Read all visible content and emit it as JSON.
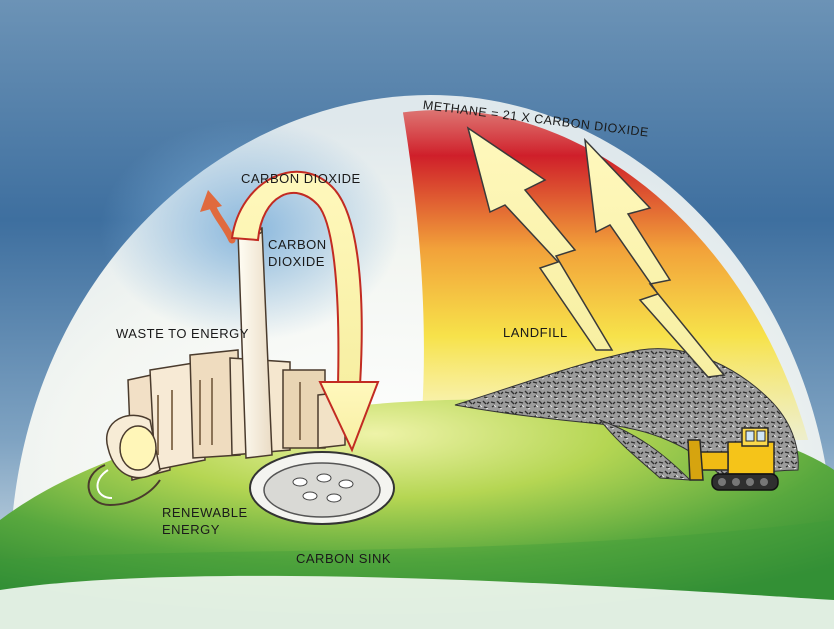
{
  "labels": {
    "methane": "METHANE = 21 X CARBON DIOXIDE",
    "carbon_dioxide_top": "CARBON DIOXIDE",
    "carbon_dioxide_stack": "CARBON\nDIOXIDE",
    "waste_to_energy": "WASTE TO ENERGY",
    "landfill": "LANDFILL",
    "renewable_energy": "RENEWABLE\nENERGY",
    "carbon_sink": "CARBON SINK"
  },
  "colors": {
    "sky_blue": "#4f7fae",
    "dome_white": "#f4f6ee",
    "ground_green": "#3f9a3c",
    "methane_red": "#d8322c",
    "methane_yellow": "#f7e64a",
    "arrow_fill": "#fbf6b0",
    "arrow_outline": "#c22b22"
  },
  "icons": [
    "factory-icon",
    "smokestack-icon",
    "carbon-sink-disc-icon",
    "landfill-pile-icon",
    "bulldozer-icon",
    "lightning-arrow-icon",
    "curved-arrow-icon"
  ]
}
